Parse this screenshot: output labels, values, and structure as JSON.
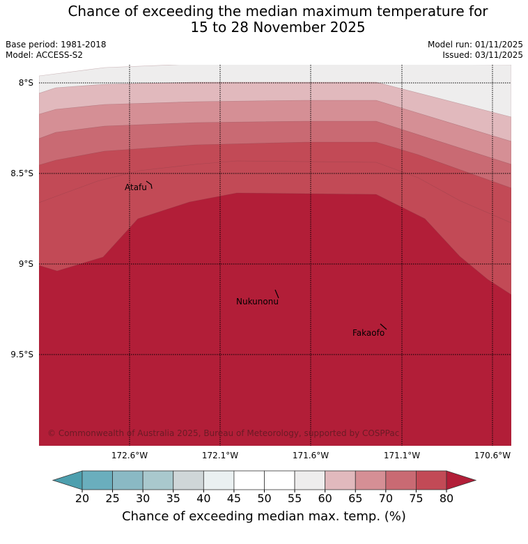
{
  "title": {
    "line1": "Chance of exceeding the median maximum temperature for",
    "line2": "15 to 28 November 2025"
  },
  "meta": {
    "base_period": "Base period: 1981-2018",
    "model": "Model: ACCESS-S2",
    "model_run": "Model run: 01/11/2025",
    "issued": "Issued: 03/11/2025"
  },
  "map": {
    "lat_labels": [
      "8°S",
      "8.5°S",
      "9°S",
      "9.5°S"
    ],
    "lon_labels": [
      "172.6°W",
      "172.1°W",
      "171.6°W",
      "171.1°W",
      "170.6°W"
    ],
    "places": [
      "Atafu",
      "Nukunonu",
      "Fakaofo"
    ],
    "copyright": "© Commonwealth of Australia 2025, Bureau of Meteorology, supported by COSPPac",
    "contour_colors": {
      "below_45": "#eaf0f1",
      "p50_55": "#ffffff",
      "p55_60": "#eeeded",
      "p60_65": "#e1b9bd",
      "p65_70": "#d58f95",
      "p70_75": "#c96a73",
      "p75_80": "#c24a56",
      "above_80": "#b21e38"
    }
  },
  "colorbar": {
    "ticks": [
      "20",
      "25",
      "30",
      "35",
      "40",
      "45",
      "50",
      "55",
      "60",
      "65",
      "70",
      "75",
      "80"
    ],
    "colors": [
      "#6aaebd",
      "#8ab9c4",
      "#a9c8cd",
      "#cfd6d8",
      "#eaf0f1",
      "#ffffff",
      "#ffffff",
      "#eeeded",
      "#e1b9bd",
      "#d58f95",
      "#c96a73",
      "#c24a56"
    ],
    "under_color": "#4d9fae",
    "over_color": "#b21e38",
    "label": "Chance of exceeding median max. temp. (%)"
  }
}
